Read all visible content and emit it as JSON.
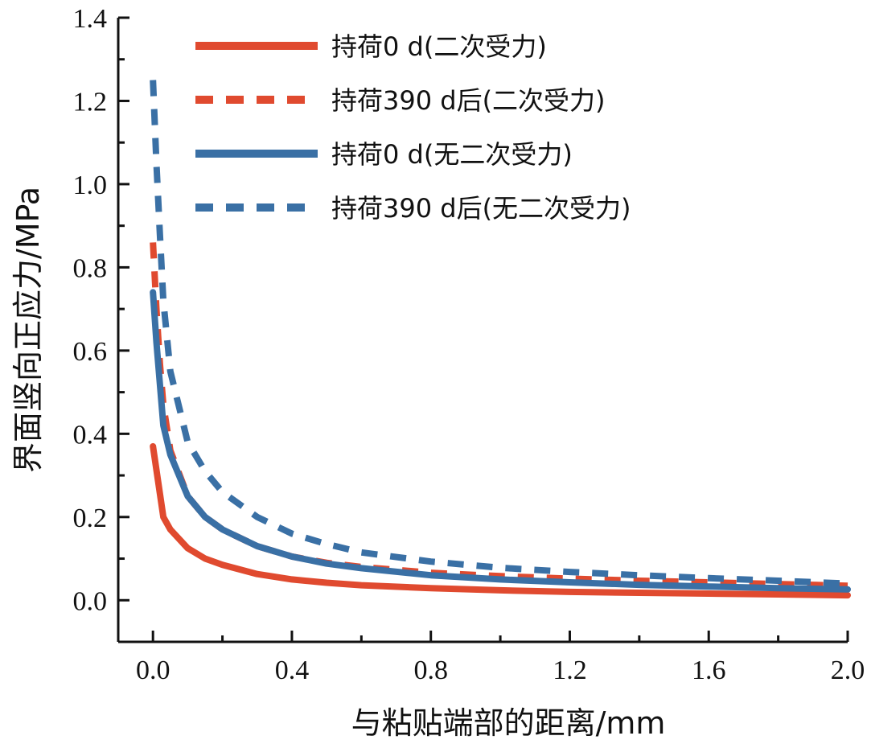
{
  "chart_data": {
    "type": "line",
    "title": "",
    "xlabel": "与粘贴端部的距离/mm",
    "ylabel": "界面竖向正应力/MPa",
    "xlim": [
      -0.1,
      2.0
    ],
    "ylim": [
      -0.1,
      1.4
    ],
    "xticks": [
      "0.0",
      "0.4",
      "0.8",
      "1.2",
      "1.6",
      "2.0"
    ],
    "yticks": [
      "0.0",
      "0.2",
      "0.4",
      "0.6",
      "0.8",
      "1.0",
      "1.2",
      "1.4"
    ],
    "grid": false,
    "legend_position": "top-right",
    "series": [
      {
        "name": "持荷0 d(二次受力)",
        "color": "#e04a2f",
        "dash": "solid",
        "x": [
          0.0,
          0.03,
          0.05,
          0.1,
          0.15,
          0.2,
          0.3,
          0.4,
          0.5,
          0.6,
          0.8,
          1.0,
          1.2,
          1.4,
          1.6,
          1.8,
          2.0
        ],
        "y": [
          0.37,
          0.2,
          0.17,
          0.125,
          0.1,
          0.085,
          0.063,
          0.05,
          0.042,
          0.036,
          0.029,
          0.024,
          0.02,
          0.018,
          0.016,
          0.014,
          0.012
        ]
      },
      {
        "name": "持荷390 d后(二次受力)",
        "color": "#e04a2f",
        "dash": "dashed",
        "x": [
          0.0,
          0.01,
          0.02,
          0.03,
          0.05,
          0.1,
          0.15,
          0.2,
          0.3,
          0.4,
          0.5,
          0.6,
          0.8,
          1.0,
          1.2,
          1.4,
          1.6,
          1.8,
          2.0
        ],
        "y": [
          0.86,
          0.7,
          0.57,
          0.47,
          0.36,
          0.25,
          0.2,
          0.17,
          0.13,
          0.105,
          0.09,
          0.08,
          0.066,
          0.058,
          0.052,
          0.047,
          0.043,
          0.039,
          0.035
        ]
      },
      {
        "name": "持荷0 d(无二次受力)",
        "color": "#3a70a5",
        "dash": "solid",
        "x": [
          0.0,
          0.01,
          0.02,
          0.03,
          0.05,
          0.1,
          0.15,
          0.2,
          0.3,
          0.4,
          0.5,
          0.6,
          0.8,
          1.0,
          1.2,
          1.4,
          1.6,
          1.8,
          2.0
        ],
        "y": [
          0.74,
          0.62,
          0.52,
          0.42,
          0.35,
          0.25,
          0.2,
          0.17,
          0.13,
          0.105,
          0.088,
          0.077,
          0.06,
          0.05,
          0.043,
          0.037,
          0.033,
          0.029,
          0.026
        ]
      },
      {
        "name": "持荷390 d后(无二次受力)",
        "color": "#3a70a5",
        "dash": "dashed",
        "x": [
          0.0,
          0.01,
          0.02,
          0.03,
          0.05,
          0.1,
          0.15,
          0.2,
          0.3,
          0.4,
          0.5,
          0.6,
          0.8,
          1.0,
          1.2,
          1.4,
          1.6,
          1.8,
          2.0
        ],
        "y": [
          1.25,
          1.05,
          0.88,
          0.72,
          0.55,
          0.38,
          0.31,
          0.26,
          0.2,
          0.16,
          0.135,
          0.115,
          0.093,
          0.078,
          0.068,
          0.06,
          0.053,
          0.047,
          0.04
        ]
      }
    ]
  }
}
